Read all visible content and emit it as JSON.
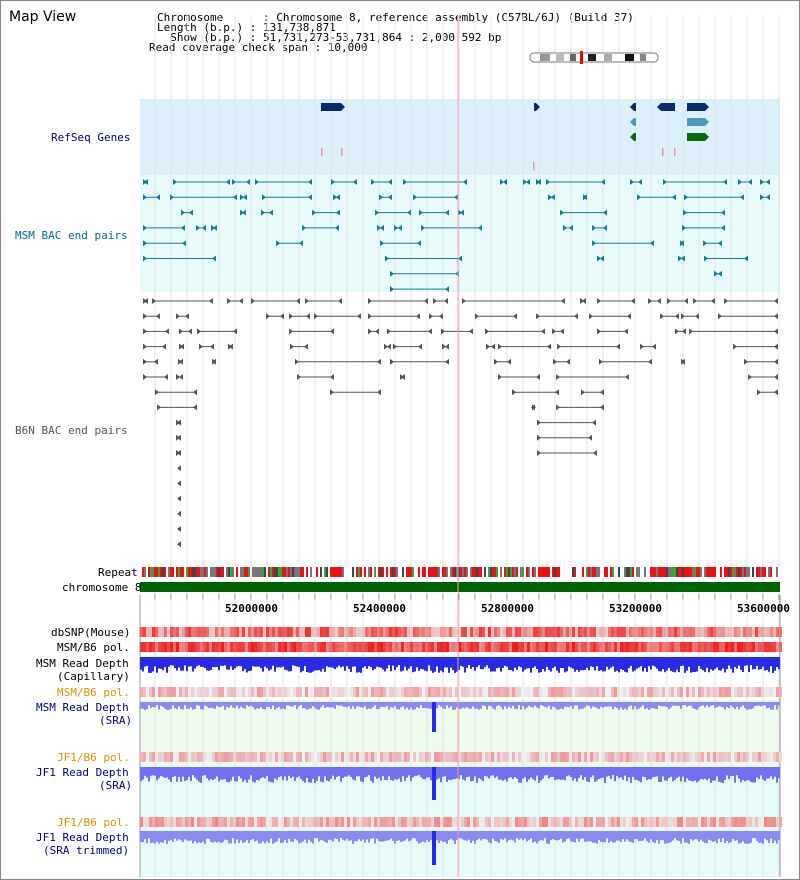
{
  "header": {
    "title": "Map View",
    "chromosome_line": "Chromosome      : Chromosome 8, reference assembly (C57BL/6J) (Build 37)",
    "length_line": "Length (b.p.) : 131,738,871",
    "show_line": "  Show (b.p.) : 51,731,273-53,731,864 : 2,000,592 bp",
    "coverage_line": "Read coverage check span : 10,000"
  },
  "tracks": {
    "refseq": "RefSeq Genes",
    "msm_bac": "MSM BAC end pairs",
    "b6n_bac": "B6N BAC end pairs",
    "repeat": "Repeat",
    "chromosome": "chromosome 8",
    "dbsnp": "dbSNP(Mouse)",
    "msm_pol1": "MSM/B6 pol.",
    "msm_depth_cap_1": "MSM Read Depth",
    "msm_depth_cap_2": "(Capillary)",
    "msm_pol2": "MSM/B6 pol.",
    "msm_depth_sra_1": "MSM Read Depth",
    "msm_depth_sra_2": "(SRA)",
    "jf1_pol1": "JF1/B6 pol.",
    "jf1_depth_sra_1": "JF1 Read Depth",
    "jf1_depth_sra_2": "(SRA)",
    "jf1_pol2": "JF1/B6 pol.",
    "jf1_depth_trim_1": "JF1 Read Depth",
    "jf1_depth_trim_2": "(SRA trimmed)"
  },
  "axis": {
    "ticks": [
      "52000000",
      "52400000",
      "52800000",
      "53200000",
      "53600000"
    ]
  },
  "colors": {
    "refseq_bg": "#dcf0fb",
    "msm_bac_bg": "#e8fafa",
    "depth_bg_green": "#effaee",
    "depth_bg_cyan": "#e6fafa",
    "msm_depth_blue": "#2828ee",
    "jf1_depth_blue": "#7070f0",
    "chromosome_green": "#006400",
    "snp_red": "#ee2222",
    "msm_label": "#000080",
    "bac_label": "#006c8a",
    "pol_orange": "#e09000",
    "gene_navy": "#0a2a6a",
    "gene_teal": "#4a9ab8",
    "gene_green": "#0a6a0a"
  }
}
